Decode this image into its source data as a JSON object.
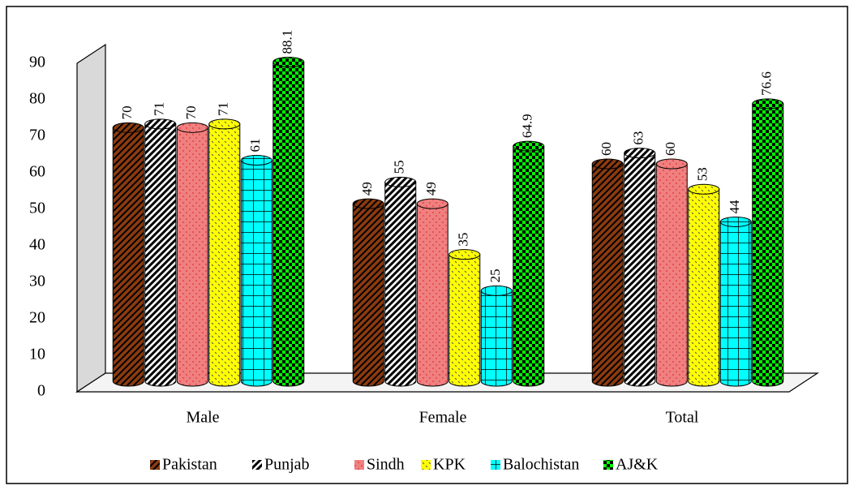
{
  "chart_data": {
    "type": "bar3d",
    "categories": [
      "Male",
      "Female",
      "Total"
    ],
    "series": [
      {
        "name": "Pakistan",
        "color": "#8b3a0f",
        "values": [
          70,
          49,
          60
        ]
      },
      {
        "name": "Punjab",
        "color": "#ffffff",
        "values": [
          71,
          55,
          63
        ]
      },
      {
        "name": "Sindh",
        "color": "#f08080",
        "values": [
          70,
          49,
          60
        ]
      },
      {
        "name": "KPK",
        "color": "#ffff00",
        "values": [
          71,
          35,
          53
        ]
      },
      {
        "name": "Balochistan",
        "color": "#00ffff",
        "values": [
          61,
          25,
          44
        ]
      },
      {
        "name": "AJ&K",
        "color": "#00ff00",
        "values": [
          88.1,
          64.9,
          76.6
        ]
      }
    ],
    "ylim": [
      0,
      90
    ],
    "yticks": [
      0,
      10,
      20,
      30,
      40,
      50,
      60,
      70,
      80,
      90
    ],
    "grid": false,
    "legend": "bottom"
  }
}
